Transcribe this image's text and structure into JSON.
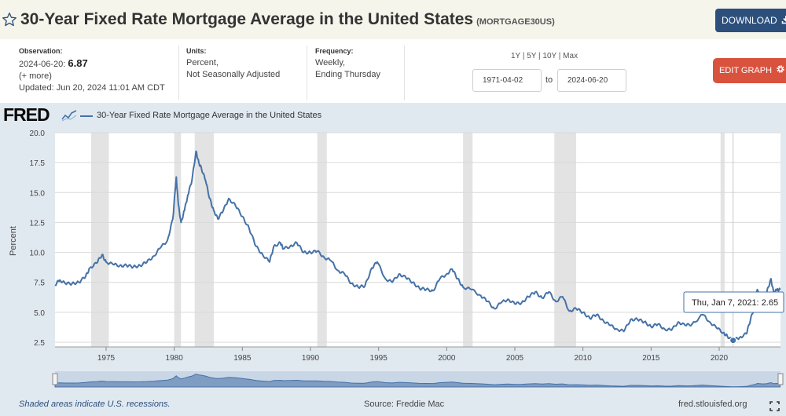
{
  "header": {
    "title": "30-Year Fixed Rate Mortgage Average in the United States",
    "series_id": "(MORTGAGE30US)",
    "download_label": "DOWNLOAD"
  },
  "observation": {
    "label": "Observation:",
    "date": "2024-06-20:",
    "value": "6.87",
    "more": "(+ more)",
    "updated": "Updated: Jun 20, 2024 11:01 AM CDT"
  },
  "units": {
    "label": "Units:",
    "line1": "Percent,",
    "line2": "Not Seasonally Adjusted"
  },
  "frequency": {
    "label": "Frequency:",
    "line1": "Weekly,",
    "line2": "Ending Thursday"
  },
  "range": {
    "links": "1Y | 5Y | 10Y | Max",
    "start": "1971-04-02",
    "to": "to",
    "end": "2024-06-20"
  },
  "edit_label": "EDIT GRAPH",
  "logo": "FRED",
  "legend": "30-Year Fixed Rate Mortgage Average in the United States",
  "tooltip": {
    "date": "Thu, Jan 7, 2021:",
    "value": "2.65"
  },
  "footer": {
    "recessions": "Shaded areas indicate U.S. recessions.",
    "source": "Source: Freddie Mac",
    "site": "fred.stlouisfed.org"
  },
  "colors": {
    "line": "#4572a7",
    "recession": "#e3e3e3",
    "plot_bg": "#ffffff",
    "panel_bg": "#e1e9f0"
  },
  "chart_data": {
    "type": "line",
    "title": "30-Year Fixed Rate Mortgage Average in the United States",
    "xlabel": "",
    "ylabel": "Percent",
    "xlim": [
      1971.25,
      2024.5
    ],
    "ylim": [
      2.5,
      20.0
    ],
    "yticks": [
      2.5,
      5.0,
      7.5,
      10.0,
      12.5,
      15.0,
      17.5,
      20.0
    ],
    "ytick_labels": [
      "2.5",
      "5.0",
      "7.5",
      "10.0",
      "12.5",
      "15.0",
      "17.5",
      "20.0"
    ],
    "xticks": [
      1975,
      1980,
      1985,
      1990,
      1995,
      2000,
      2005,
      2010,
      2015,
      2020
    ],
    "xtick_labels": [
      "1975",
      "1980",
      "1985",
      "1990",
      "1995",
      "2000",
      "2005",
      "2010",
      "2015",
      "2020"
    ],
    "recessions": [
      [
        1973.9,
        1975.2
      ],
      [
        1980.0,
        1980.5
      ],
      [
        1981.5,
        1982.9
      ],
      [
        1990.5,
        1991.2
      ],
      [
        2001.2,
        2001.9
      ],
      [
        2007.9,
        2009.5
      ],
      [
        2020.1,
        2020.4
      ]
    ],
    "series": [
      {
        "name": "30-Year Fixed Rate Mortgage Average in the United States",
        "x": [
          1971.25,
          1971.6,
          1972.0,
          1972.5,
          1973.0,
          1973.5,
          1973.8,
          1974.3,
          1974.7,
          1975.0,
          1975.5,
          1976.0,
          1976.5,
          1977.0,
          1977.5,
          1978.0,
          1978.5,
          1979.0,
          1979.5,
          1979.9,
          1980.15,
          1980.3,
          1980.5,
          1980.75,
          1981.0,
          1981.3,
          1981.6,
          1981.8,
          1982.0,
          1982.3,
          1982.6,
          1982.9,
          1983.2,
          1983.6,
          1984.0,
          1984.5,
          1985.0,
          1985.5,
          1986.0,
          1986.5,
          1987.0,
          1987.3,
          1987.8,
          1988.0,
          1988.5,
          1989.0,
          1989.5,
          1990.0,
          1990.5,
          1991.0,
          1991.5,
          1992.0,
          1992.5,
          1993.0,
          1993.5,
          1994.0,
          1994.5,
          1994.9,
          1995.5,
          1996.0,
          1996.5,
          1997.0,
          1997.5,
          1998.0,
          1998.5,
          1999.0,
          1999.5,
          2000.0,
          2000.4,
          2000.8,
          2001.2,
          2001.8,
          2002.5,
          2003.0,
          2003.5,
          2004.0,
          2004.5,
          2005.0,
          2005.5,
          2006.0,
          2006.5,
          2007.0,
          2007.5,
          2008.0,
          2008.5,
          2009.0,
          2009.5,
          2010.0,
          2010.5,
          2011.0,
          2011.5,
          2012.0,
          2012.5,
          2013.0,
          2013.5,
          2014.0,
          2014.5,
          2015.0,
          2015.5,
          2016.0,
          2016.5,
          2017.0,
          2017.5,
          2018.0,
          2018.8,
          2019.3,
          2019.8,
          2020.3,
          2020.6,
          2021.02,
          2021.5,
          2022.0,
          2022.3,
          2022.6,
          2022.8,
          2023.2,
          2023.5,
          2023.8,
          2024.0,
          2024.25,
          2024.47
        ],
        "values": [
          7.3,
          7.7,
          7.4,
          7.4,
          7.5,
          8.0,
          8.7,
          9.1,
          9.8,
          9.2,
          9.0,
          8.9,
          8.9,
          8.8,
          8.9,
          9.2,
          9.7,
          10.4,
          11.0,
          12.8,
          16.3,
          14.0,
          12.5,
          13.5,
          14.8,
          16.0,
          18.45,
          17.5,
          17.0,
          16.0,
          14.5,
          13.5,
          12.8,
          13.5,
          14.5,
          13.9,
          13.0,
          12.0,
          10.5,
          9.8,
          9.2,
          10.5,
          10.8,
          10.3,
          10.5,
          10.8,
          10.0,
          10.0,
          10.1,
          9.6,
          9.3,
          8.5,
          8.2,
          7.4,
          7.1,
          7.2,
          8.7,
          9.2,
          7.8,
          7.5,
          8.2,
          7.9,
          7.5,
          7.0,
          6.9,
          6.8,
          7.8,
          8.2,
          8.6,
          7.8,
          7.1,
          6.9,
          6.4,
          5.9,
          5.3,
          5.8,
          6.1,
          5.7,
          5.8,
          6.3,
          6.7,
          6.2,
          6.7,
          5.9,
          6.3,
          5.1,
          5.3,
          5.0,
          4.5,
          4.8,
          4.3,
          3.9,
          3.6,
          3.4,
          4.4,
          4.4,
          4.2,
          3.8,
          4.0,
          3.6,
          3.5,
          4.2,
          3.9,
          4.0,
          4.8,
          4.2,
          3.7,
          3.3,
          3.0,
          2.65,
          2.9,
          3.2,
          4.4,
          5.5,
          6.9,
          6.3,
          6.7,
          7.8,
          6.6,
          6.9,
          6.87
        ]
      }
    ],
    "tooltip_point": {
      "x": 2021.02,
      "y": 2.65
    }
  }
}
